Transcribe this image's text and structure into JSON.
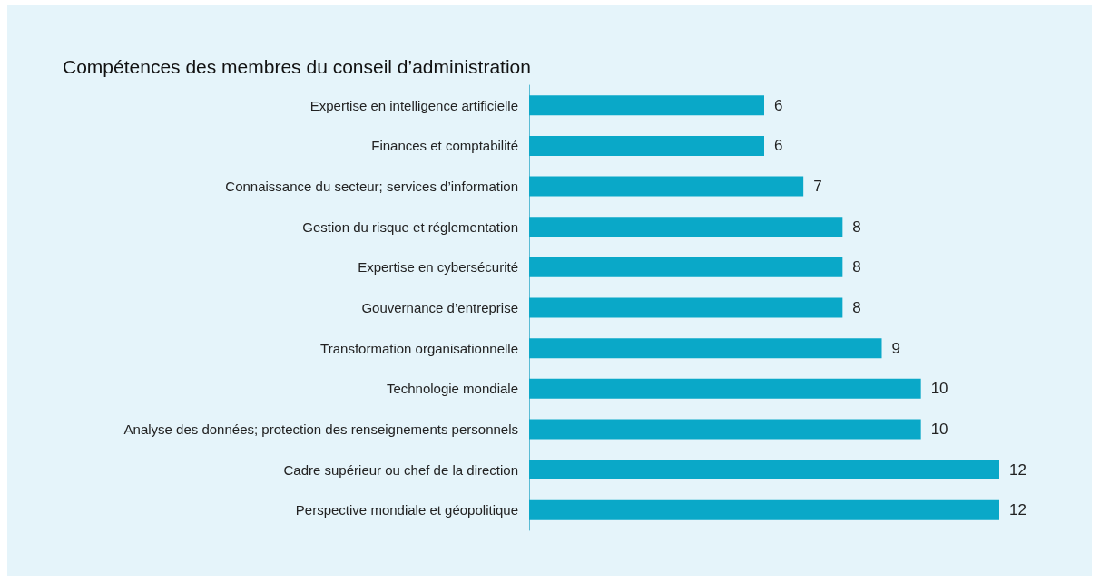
{
  "chart_data": {
    "type": "bar",
    "orientation": "horizontal",
    "title": "Compétences des membres du conseil d’administration",
    "categories": [
      "Expertise en intelligence artificielle",
      "Finances et comptabilité",
      "Connaissance du secteur; services d’information",
      "Gestion du risque et réglementation",
      "Expertise en cybersécurité",
      "Gouvernance d’entreprise",
      "Transformation organisationnelle",
      "Technologie mondiale",
      "Analyse des données; protection des renseignements personnels",
      "Cadre supérieur ou chef de la direction",
      "Perspective mondiale et géopolitique"
    ],
    "values": [
      6,
      6,
      7,
      8,
      8,
      8,
      9,
      10,
      10,
      12,
      12
    ],
    "color": "#0aa8c8",
    "data_labels": true
  }
}
